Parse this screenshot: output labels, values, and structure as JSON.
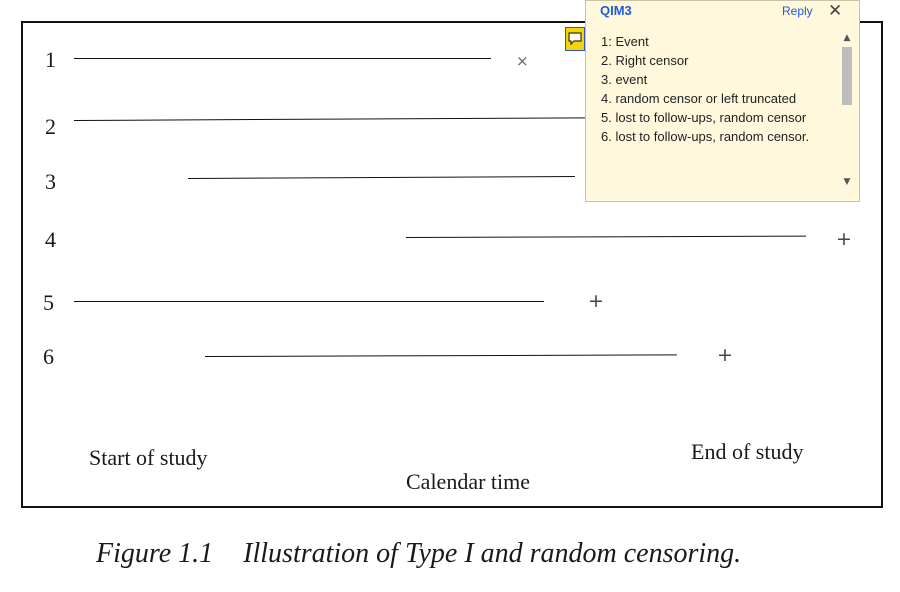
{
  "figure": {
    "rows": [
      {
        "label": "1",
        "marker": "×"
      },
      {
        "label": "2",
        "marker": ""
      },
      {
        "label": "3",
        "marker": ""
      },
      {
        "label": "4",
        "marker": "+"
      },
      {
        "label": "5",
        "marker": "+"
      },
      {
        "label": "6",
        "marker": "+"
      }
    ],
    "start_label": "Start of study",
    "end_label": "End of study",
    "axis_label": "Calendar time",
    "caption_number": "Figure 1.1",
    "caption_text": "Illustration of Type I and random censoring."
  },
  "comment": {
    "icon": "speech-bubble-icon",
    "author": "QIM3",
    "reply_label": "Reply",
    "close_icon": "close-icon",
    "lines": [
      "1: Event",
      "2. Right censor",
      "3. event",
      "4. random censor or left truncated",
      "5. lost to follow-ups, random censor",
      "6. lost to follow-ups, random censor."
    ]
  }
}
